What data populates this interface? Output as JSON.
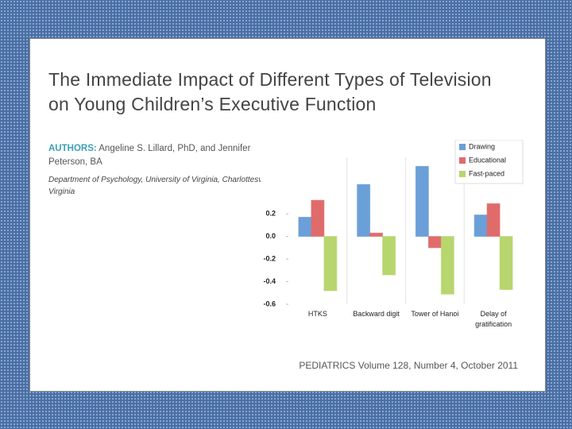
{
  "document": {
    "title_lines": [
      "The Immediate Impact of Different Types of Television",
      "on Young Children’s Executive Function"
    ],
    "authors_label": "AUTHORS:",
    "authors": "Angeline S. Lillard, PhD,  and Jennifer Peterson, BA",
    "affiliation": "Department of Psychology, University of Virginia, Charlottesville, Virginia",
    "citation": "PEDIATRICS Volume 128, Number 4, October 2011"
  },
  "chart_data": {
    "type": "bar",
    "categories": [
      "HTKS",
      "Backward digit",
      "Tower of Hanoi",
      "Delay of gratification"
    ],
    "series": [
      {
        "name": "Drawing",
        "color": "#6a9fd8",
        "values": [
          0.17,
          0.46,
          0.62,
          0.19
        ]
      },
      {
        "name": "Educational",
        "color": "#e06b6b",
        "values": [
          0.32,
          0.03,
          -0.1,
          0.29
        ]
      },
      {
        "name": "Fast-paced",
        "color": "#b7d66e",
        "values": [
          -0.48,
          -0.34,
          -0.51,
          -0.47
        ]
      }
    ],
    "ylim": [
      -0.6,
      0.7
    ],
    "yticks": [
      -0.6,
      -0.4,
      -0.2,
      {
        "value": 0,
        "label": "0.0"
      },
      0.2
    ],
    "legend": "top-right"
  }
}
